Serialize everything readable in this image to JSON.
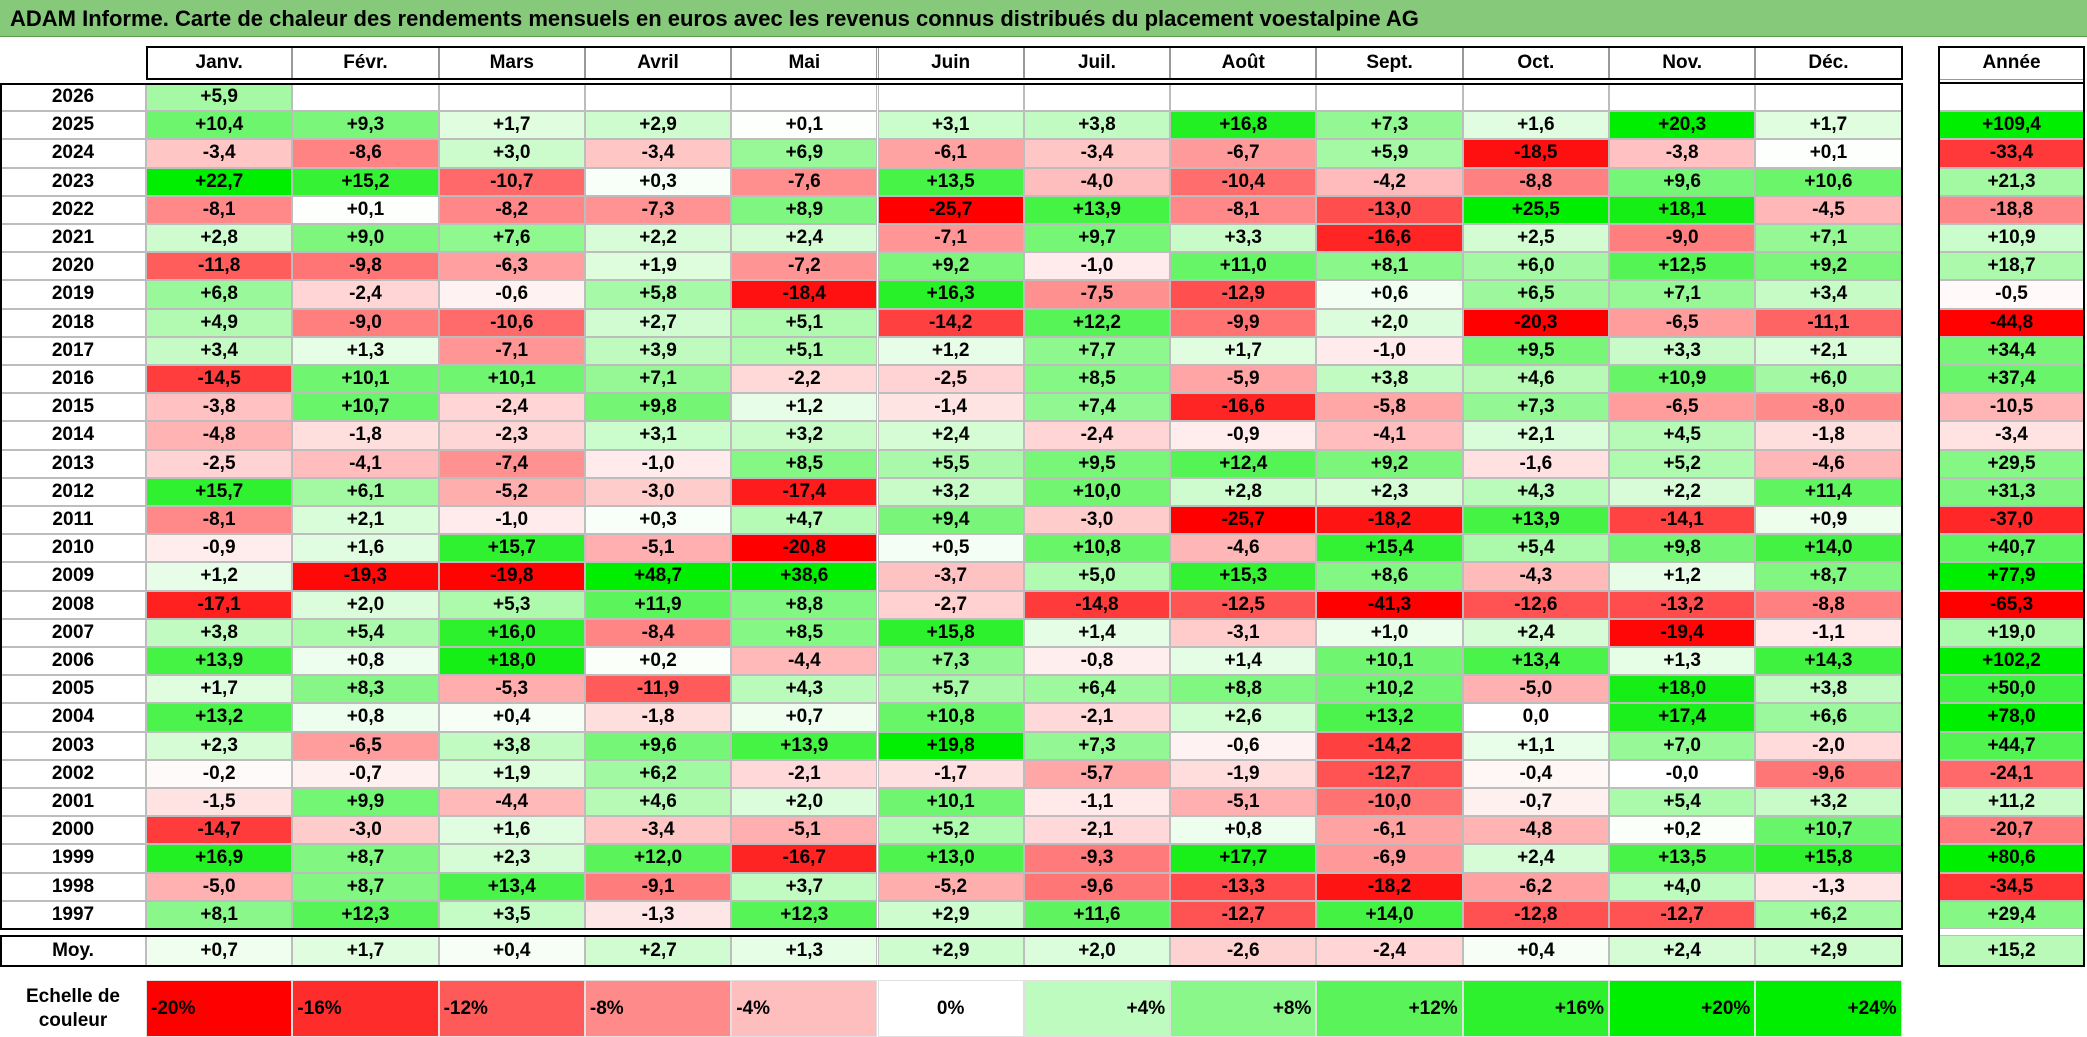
{
  "title": "ADAM Informe. Carte de chaleur des rendements mensuels en euros avec les revenus connus distribués du placement voestalpine AG",
  "chart_data": {
    "type": "heatmap",
    "title": "ADAM Informe. Carte de chaleur des rendements mensuels en euros avec les revenus connus distribués du placement voestalpine AG",
    "months": [
      "Janv.",
      "Févr.",
      "Mars",
      "Avril",
      "Mai",
      "Juin",
      "Juil.",
      "Août",
      "Sept.",
      "Oct.",
      "Nov.",
      "Déc."
    ],
    "annual_header": "Année",
    "rows": [
      {
        "year": "2026",
        "values": [
          "+5,9",
          "",
          "",
          "",
          "",
          "",
          "",
          "",
          "",
          "",
          "",
          ""
        ],
        "annual": ""
      },
      {
        "year": "2025",
        "values": [
          "+10,4",
          "+9,3",
          "+1,7",
          "+2,9",
          "+0,1",
          "+3,1",
          "+3,8",
          "+16,8",
          "+7,3",
          "+1,6",
          "+20,3",
          "+1,7"
        ],
        "annual": "+109,4"
      },
      {
        "year": "2024",
        "values": [
          "-3,4",
          "-8,6",
          "+3,0",
          "-3,4",
          "+6,9",
          "-6,1",
          "-3,4",
          "-6,7",
          "+5,9",
          "-18,5",
          "-3,8",
          "+0,1"
        ],
        "annual": "-33,4"
      },
      {
        "year": "2023",
        "values": [
          "+22,7",
          "+15,2",
          "-10,7",
          "+0,3",
          "-7,6",
          "+13,5",
          "-4,0",
          "-10,4",
          "-4,2",
          "-8,8",
          "+9,6",
          "+10,6"
        ],
        "annual": "+21,3"
      },
      {
        "year": "2022",
        "values": [
          "-8,1",
          "+0,1",
          "-8,2",
          "-7,3",
          "+8,9",
          "-25,7",
          "+13,9",
          "-8,1",
          "-13,0",
          "+25,5",
          "+18,1",
          "-4,5"
        ],
        "annual": "-18,8"
      },
      {
        "year": "2021",
        "values": [
          "+2,8",
          "+9,0",
          "+7,6",
          "+2,2",
          "+2,4",
          "-7,1",
          "+9,7",
          "+3,3",
          "-16,6",
          "+2,5",
          "-9,0",
          "+7,1"
        ],
        "annual": "+10,9"
      },
      {
        "year": "2020",
        "values": [
          "-11,8",
          "-9,8",
          "-6,3",
          "+1,9",
          "-7,2",
          "+9,2",
          "-1,0",
          "+11,0",
          "+8,1",
          "+6,0",
          "+12,5",
          "+9,2"
        ],
        "annual": "+18,7"
      },
      {
        "year": "2019",
        "values": [
          "+6,8",
          "-2,4",
          "-0,6",
          "+5,8",
          "-18,4",
          "+16,3",
          "-7,5",
          "-12,9",
          "+0,6",
          "+6,5",
          "+7,1",
          "+3,4"
        ],
        "annual": "-0,5"
      },
      {
        "year": "2018",
        "values": [
          "+4,9",
          "-9,0",
          "-10,6",
          "+2,7",
          "+5,1",
          "-14,2",
          "+12,2",
          "-9,9",
          "+2,0",
          "-20,3",
          "-6,5",
          "-11,1"
        ],
        "annual": "-44,8"
      },
      {
        "year": "2017",
        "values": [
          "+3,4",
          "+1,3",
          "-7,1",
          "+3,9",
          "+5,1",
          "+1,2",
          "+7,7",
          "+1,7",
          "-1,0",
          "+9,5",
          "+3,3",
          "+2,1"
        ],
        "annual": "+34,4"
      },
      {
        "year": "2016",
        "values": [
          "-14,5",
          "+10,1",
          "+10,1",
          "+7,1",
          "-2,2",
          "-2,5",
          "+8,5",
          "-5,9",
          "+3,8",
          "+4,6",
          "+10,9",
          "+6,0"
        ],
        "annual": "+37,4"
      },
      {
        "year": "2015",
        "values": [
          "-3,8",
          "+10,7",
          "-2,4",
          "+9,8",
          "+1,2",
          "-1,4",
          "+7,4",
          "-16,6",
          "-5,8",
          "+7,3",
          "-6,5",
          "-8,0"
        ],
        "annual": "-10,5"
      },
      {
        "year": "2014",
        "values": [
          "-4,8",
          "-1,8",
          "-2,3",
          "+3,1",
          "+3,2",
          "+2,4",
          "-2,4",
          "-0,9",
          "-4,1",
          "+2,1",
          "+4,5",
          "-1,8"
        ],
        "annual": "-3,4"
      },
      {
        "year": "2013",
        "values": [
          "-2,5",
          "-4,1",
          "-7,4",
          "-1,0",
          "+8,5",
          "+5,5",
          "+9,5",
          "+12,4",
          "+9,2",
          "-1,6",
          "+5,2",
          "-4,6"
        ],
        "annual": "+29,5"
      },
      {
        "year": "2012",
        "values": [
          "+15,7",
          "+6,1",
          "-5,2",
          "-3,0",
          "-17,4",
          "+3,2",
          "+10,0",
          "+2,8",
          "+2,3",
          "+4,3",
          "+2,2",
          "+11,4"
        ],
        "annual": "+31,3"
      },
      {
        "year": "2011",
        "values": [
          "-8,1",
          "+2,1",
          "-1,0",
          "+0,3",
          "+4,7",
          "+9,4",
          "-3,0",
          "-25,7",
          "-18,2",
          "+13,9",
          "-14,1",
          "+0,9"
        ],
        "annual": "-37,0"
      },
      {
        "year": "2010",
        "values": [
          "-0,9",
          "+1,6",
          "+15,7",
          "-5,1",
          "-20,8",
          "+0,5",
          "+10,8",
          "-4,6",
          "+15,4",
          "+5,4",
          "+9,8",
          "+14,0"
        ],
        "annual": "+40,7"
      },
      {
        "year": "2009",
        "values": [
          "+1,2",
          "-19,3",
          "-19,8",
          "+48,7",
          "+38,6",
          "-3,7",
          "+5,0",
          "+15,3",
          "+8,6",
          "-4,3",
          "+1,2",
          "+8,7"
        ],
        "annual": "+77,9"
      },
      {
        "year": "2008",
        "values": [
          "-17,1",
          "+2,0",
          "+5,3",
          "+11,9",
          "+8,8",
          "-2,7",
          "-14,8",
          "-12,5",
          "-41,3",
          "-12,6",
          "-13,2",
          "-8,8"
        ],
        "annual": "-65,3"
      },
      {
        "year": "2007",
        "values": [
          "+3,8",
          "+5,4",
          "+16,0",
          "-8,4",
          "+8,5",
          "+15,8",
          "+1,4",
          "-3,1",
          "+1,0",
          "+2,4",
          "-19,4",
          "-1,1"
        ],
        "annual": "+19,0"
      },
      {
        "year": "2006",
        "values": [
          "+13,9",
          "+0,8",
          "+18,0",
          "+0,2",
          "-4,4",
          "+7,3",
          "-0,8",
          "+1,4",
          "+10,1",
          "+13,4",
          "+1,3",
          "+14,3"
        ],
        "annual": "+102,2"
      },
      {
        "year": "2005",
        "values": [
          "+1,7",
          "+8,3",
          "-5,3",
          "-11,9",
          "+4,3",
          "+5,7",
          "+6,4",
          "+8,8",
          "+10,2",
          "-5,0",
          "+18,0",
          "+3,8"
        ],
        "annual": "+50,0"
      },
      {
        "year": "2004",
        "values": [
          "+13,2",
          "+0,8",
          "+0,4",
          "-1,8",
          "+0,7",
          "+10,8",
          "-2,1",
          "+2,6",
          "+13,2",
          "0,0",
          "+17,4",
          "+6,6"
        ],
        "annual": "+78,0"
      },
      {
        "year": "2003",
        "values": [
          "+2,3",
          "-6,5",
          "+3,8",
          "+9,6",
          "+13,9",
          "+19,8",
          "+7,3",
          "-0,6",
          "-14,2",
          "+1,1",
          "+7,0",
          "-2,0"
        ],
        "annual": "+44,7"
      },
      {
        "year": "2002",
        "values": [
          "-0,2",
          "-0,7",
          "+1,9",
          "+6,2",
          "-2,1",
          "-1,7",
          "-5,7",
          "-1,9",
          "-12,7",
          "-0,4",
          "-0,0",
          "-9,6"
        ],
        "annual": "-24,1"
      },
      {
        "year": "2001",
        "values": [
          "-1,5",
          "+9,9",
          "-4,4",
          "+4,6",
          "+2,0",
          "+10,1",
          "-1,1",
          "-5,1",
          "-10,0",
          "-0,7",
          "+5,4",
          "+3,2"
        ],
        "annual": "+11,2"
      },
      {
        "year": "2000",
        "values": [
          "-14,7",
          "-3,0",
          "+1,6",
          "-3,4",
          "-5,1",
          "+5,2",
          "-2,1",
          "+0,8",
          "-6,1",
          "-4,8",
          "+0,2",
          "+10,7"
        ],
        "annual": "-20,7"
      },
      {
        "year": "1999",
        "values": [
          "+16,9",
          "+8,7",
          "+2,3",
          "+12,0",
          "-16,7",
          "+13,0",
          "-9,3",
          "+17,7",
          "-6,9",
          "+2,4",
          "+13,5",
          "+15,8"
        ],
        "annual": "+80,6"
      },
      {
        "year": "1998",
        "values": [
          "-5,0",
          "+8,7",
          "+13,4",
          "-9,1",
          "+3,7",
          "-5,2",
          "-9,6",
          "-13,3",
          "-18,2",
          "-6,2",
          "+4,0",
          "-1,3"
        ],
        "annual": "-34,5"
      },
      {
        "year": "1997",
        "values": [
          "+8,1",
          "+12,3",
          "+3,5",
          "-1,3",
          "+12,3",
          "+2,9",
          "+11,6",
          "-12,7",
          "+14,0",
          "-12,8",
          "-12,7",
          "+6,2"
        ],
        "annual": "+29,4"
      }
    ],
    "average": {
      "label": "Moy.",
      "values": [
        "+0,7",
        "+1,7",
        "+0,4",
        "+2,7",
        "+1,3",
        "+2,9",
        "+2,0",
        "-2,6",
        "-2,4",
        "+0,4",
        "+2,4",
        "+2,9"
      ],
      "annual": "+15,2"
    },
    "color_scale": {
      "label_line1": "Echelle de",
      "label_line2": "couleur",
      "stops": [
        "-20%",
        "-16%",
        "-12%",
        "-8%",
        "-4%",
        "0%",
        "+4%",
        "+8%",
        "+12%",
        "+16%",
        "+20%",
        "+24%"
      ],
      "colors": {
        "negative_max": "#ff0000",
        "neutral": "#ffffff",
        "positive_max": "#00ee00"
      }
    }
  }
}
